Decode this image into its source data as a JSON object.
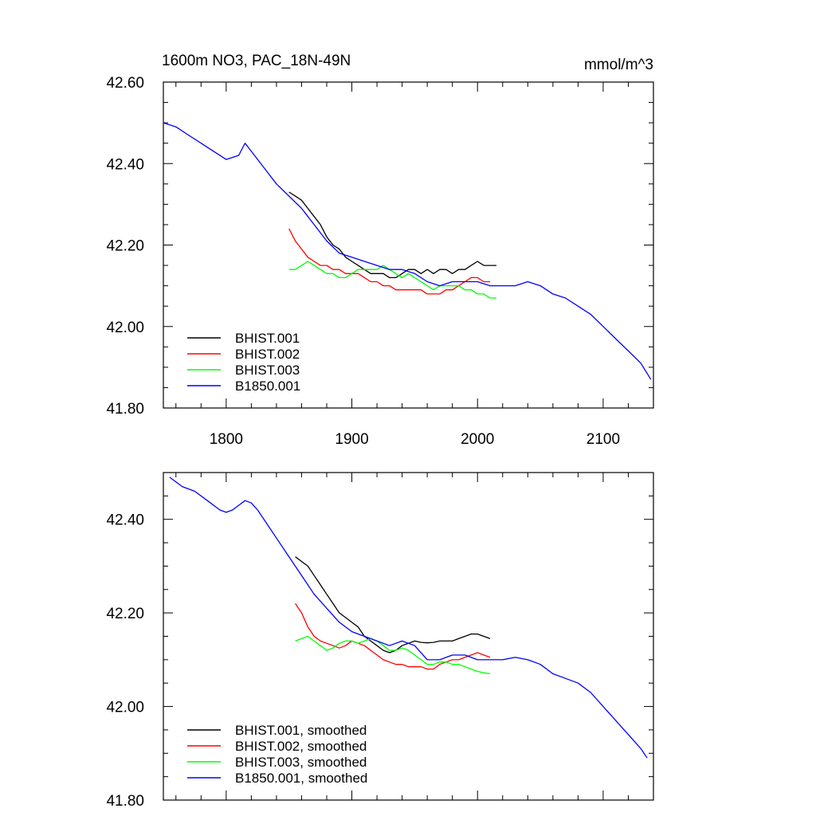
{
  "figure_title": "1600m NO3, PAC_18N-49N",
  "figure_units": "mmol/m^3",
  "chart_data": [
    {
      "type": "line",
      "title": "1600m NO3, PAC_18N-49N",
      "units": "mmol/m^3",
      "xlabel": "",
      "ylabel": "",
      "xlim": [
        1750,
        2140
      ],
      "ylim": [
        41.8,
        42.6
      ],
      "xticks": [
        1800,
        1900,
        2000,
        2100
      ],
      "xticklabels": [
        "1800",
        "1900",
        "2000",
        "2100"
      ],
      "yticks": [
        41.8,
        42.0,
        42.2,
        42.4,
        42.6
      ],
      "yticklabels": [
        "41.80",
        "42.00",
        "42.20",
        "42.40",
        "42.60"
      ],
      "legend_position": "bottom-left",
      "series": [
        {
          "name": "BHIST.001",
          "color": "#000000",
          "x": [
            1850,
            1855,
            1860,
            1865,
            1870,
            1875,
            1880,
            1885,
            1890,
            1895,
            1900,
            1905,
            1910,
            1915,
            1920,
            1925,
            1930,
            1935,
            1940,
            1945,
            1950,
            1955,
            1960,
            1965,
            1970,
            1975,
            1980,
            1985,
            1990,
            1995,
            2000,
            2005,
            2010,
            2015
          ],
          "y": [
            42.33,
            42.32,
            42.31,
            42.29,
            42.27,
            42.25,
            42.22,
            42.2,
            42.19,
            42.17,
            42.16,
            42.15,
            42.14,
            42.13,
            42.13,
            42.13,
            42.12,
            42.12,
            42.13,
            42.14,
            42.14,
            42.13,
            42.14,
            42.13,
            42.14,
            42.14,
            42.13,
            42.14,
            42.14,
            42.15,
            42.16,
            42.15,
            42.15,
            42.15
          ]
        },
        {
          "name": "BHIST.002",
          "color": "#ff0000",
          "x": [
            1850,
            1855,
            1860,
            1865,
            1870,
            1875,
            1880,
            1885,
            1890,
            1895,
            1900,
            1905,
            1910,
            1915,
            1920,
            1925,
            1930,
            1935,
            1940,
            1945,
            1950,
            1955,
            1960,
            1965,
            1970,
            1975,
            1980,
            1985,
            1990,
            1995,
            2000,
            2005,
            2010
          ],
          "y": [
            42.24,
            42.21,
            42.19,
            42.17,
            42.16,
            42.15,
            42.15,
            42.14,
            42.14,
            42.13,
            42.13,
            42.13,
            42.12,
            42.11,
            42.11,
            42.1,
            42.1,
            42.09,
            42.09,
            42.09,
            42.09,
            42.09,
            42.08,
            42.08,
            42.08,
            42.09,
            42.09,
            42.1,
            42.11,
            42.12,
            42.12,
            42.11,
            42.11
          ]
        },
        {
          "name": "BHIST.003",
          "color": "#00ff00",
          "x": [
            1850,
            1855,
            1860,
            1865,
            1870,
            1875,
            1880,
            1885,
            1890,
            1895,
            1900,
            1905,
            1910,
            1915,
            1920,
            1925,
            1930,
            1935,
            1940,
            1945,
            1950,
            1955,
            1960,
            1965,
            1970,
            1975,
            1980,
            1985,
            1990,
            1995,
            2000,
            2005,
            2010,
            2015
          ],
          "y": [
            42.14,
            42.14,
            42.15,
            42.16,
            42.15,
            42.14,
            42.13,
            42.13,
            42.12,
            42.12,
            42.13,
            42.14,
            42.14,
            42.14,
            42.14,
            42.15,
            42.14,
            42.13,
            42.12,
            42.13,
            42.12,
            42.11,
            42.1,
            42.09,
            42.1,
            42.1,
            42.1,
            42.1,
            42.09,
            42.09,
            42.08,
            42.08,
            42.07,
            42.07
          ]
        },
        {
          "name": "B1850.001",
          "color": "#0000ff",
          "x": [
            1750,
            1760,
            1770,
            1780,
            1790,
            1800,
            1810,
            1815,
            1820,
            1830,
            1840,
            1850,
            1860,
            1870,
            1880,
            1890,
            1900,
            1910,
            1920,
            1930,
            1940,
            1950,
            1960,
            1970,
            1980,
            1990,
            2000,
            2010,
            2020,
            2030,
            2040,
            2050,
            2060,
            2070,
            2080,
            2090,
            2100,
            2110,
            2120,
            2130,
            2138
          ],
          "y": [
            42.5,
            42.49,
            42.47,
            42.45,
            42.43,
            42.41,
            42.42,
            42.45,
            42.43,
            42.39,
            42.35,
            42.32,
            42.29,
            42.25,
            42.21,
            42.18,
            42.17,
            42.16,
            42.15,
            42.14,
            42.14,
            42.13,
            42.11,
            42.1,
            42.11,
            42.11,
            42.11,
            42.1,
            42.1,
            42.1,
            42.11,
            42.1,
            42.08,
            42.07,
            42.05,
            42.03,
            42.0,
            41.97,
            41.94,
            41.91,
            41.87
          ]
        }
      ]
    },
    {
      "type": "line",
      "title": "",
      "xlabel": "",
      "ylabel": "",
      "xlim": [
        1750,
        2140
      ],
      "ylim": [
        41.8,
        42.5
      ],
      "xticks": [
        1800,
        1900,
        2000,
        2100
      ],
      "xticklabels": [],
      "yticks": [
        41.8,
        42.0,
        42.2,
        42.4
      ],
      "yticklabels": [
        "41.80",
        "42.00",
        "42.20",
        "42.40"
      ],
      "legend_position": "bottom-left",
      "series": [
        {
          "name": "BHIST.001, smoothed",
          "color": "#000000",
          "x": [
            1855,
            1860,
            1865,
            1870,
            1875,
            1880,
            1885,
            1890,
            1895,
            1900,
            1905,
            1910,
            1915,
            1920,
            1925,
            1930,
            1935,
            1940,
            1945,
            1950,
            1955,
            1960,
            1965,
            1970,
            1975,
            1980,
            1985,
            1990,
            1995,
            2000,
            2005,
            2010
          ],
          "y": [
            42.32,
            42.31,
            42.3,
            42.28,
            42.26,
            42.24,
            42.22,
            42.2,
            42.19,
            42.18,
            42.17,
            42.15,
            42.14,
            42.13,
            42.12,
            42.115,
            42.12,
            42.13,
            42.135,
            42.14,
            42.137,
            42.136,
            42.137,
            42.14,
            42.14,
            42.14,
            42.145,
            42.15,
            42.155,
            42.155,
            42.15,
            42.145
          ]
        },
        {
          "name": "BHIST.002, smoothed",
          "color": "#ff0000",
          "x": [
            1855,
            1860,
            1865,
            1870,
            1875,
            1880,
            1885,
            1890,
            1895,
            1900,
            1905,
            1910,
            1915,
            1920,
            1925,
            1930,
            1935,
            1940,
            1945,
            1950,
            1955,
            1960,
            1965,
            1970,
            1975,
            1980,
            1985,
            1990,
            1995,
            2000,
            2005,
            2010
          ],
          "y": [
            42.22,
            42.2,
            42.17,
            42.15,
            42.14,
            42.135,
            42.13,
            42.125,
            42.13,
            42.14,
            42.135,
            42.13,
            42.12,
            42.11,
            42.1,
            42.095,
            42.09,
            42.09,
            42.085,
            42.085,
            42.085,
            42.08,
            42.08,
            42.09,
            42.095,
            42.1,
            42.1,
            42.105,
            42.11,
            42.115,
            42.11,
            42.105
          ]
        },
        {
          "name": "BHIST.003, smoothed",
          "color": "#00ff00",
          "x": [
            1855,
            1860,
            1865,
            1870,
            1875,
            1880,
            1885,
            1890,
            1895,
            1900,
            1905,
            1910,
            1915,
            1920,
            1925,
            1930,
            1935,
            1940,
            1945,
            1950,
            1955,
            1960,
            1965,
            1970,
            1975,
            1980,
            1985,
            1990,
            1995,
            2000,
            2005,
            2010
          ],
          "y": [
            42.14,
            42.145,
            42.15,
            42.14,
            42.13,
            42.12,
            42.125,
            42.135,
            42.14,
            42.14,
            42.135,
            42.14,
            42.145,
            42.14,
            42.13,
            42.12,
            42.12,
            42.125,
            42.12,
            42.11,
            42.1,
            42.09,
            42.09,
            42.095,
            42.095,
            42.09,
            42.09,
            42.085,
            42.08,
            42.075,
            42.072,
            42.07
          ]
        },
        {
          "name": "B1850.001, smoothed",
          "color": "#0000ff",
          "x": [
            1755,
            1765,
            1775,
            1785,
            1795,
            1800,
            1805,
            1810,
            1815,
            1820,
            1825,
            1830,
            1840,
            1850,
            1860,
            1870,
            1880,
            1890,
            1900,
            1910,
            1920,
            1930,
            1940,
            1950,
            1960,
            1970,
            1980,
            1990,
            2000,
            2010,
            2020,
            2030,
            2040,
            2050,
            2060,
            2070,
            2080,
            2090,
            2100,
            2110,
            2120,
            2130,
            2135
          ],
          "y": [
            42.49,
            42.47,
            42.46,
            42.44,
            42.42,
            42.415,
            42.42,
            42.43,
            42.44,
            42.435,
            42.42,
            42.4,
            42.36,
            42.32,
            42.28,
            42.24,
            42.21,
            42.18,
            42.16,
            42.15,
            42.14,
            42.13,
            42.14,
            42.13,
            42.1,
            42.1,
            42.11,
            42.11,
            42.1,
            42.1,
            42.1,
            42.105,
            42.1,
            42.09,
            42.07,
            42.06,
            42.05,
            42.03,
            42.0,
            41.97,
            41.94,
            41.91,
            41.89
          ]
        }
      ]
    }
  ]
}
